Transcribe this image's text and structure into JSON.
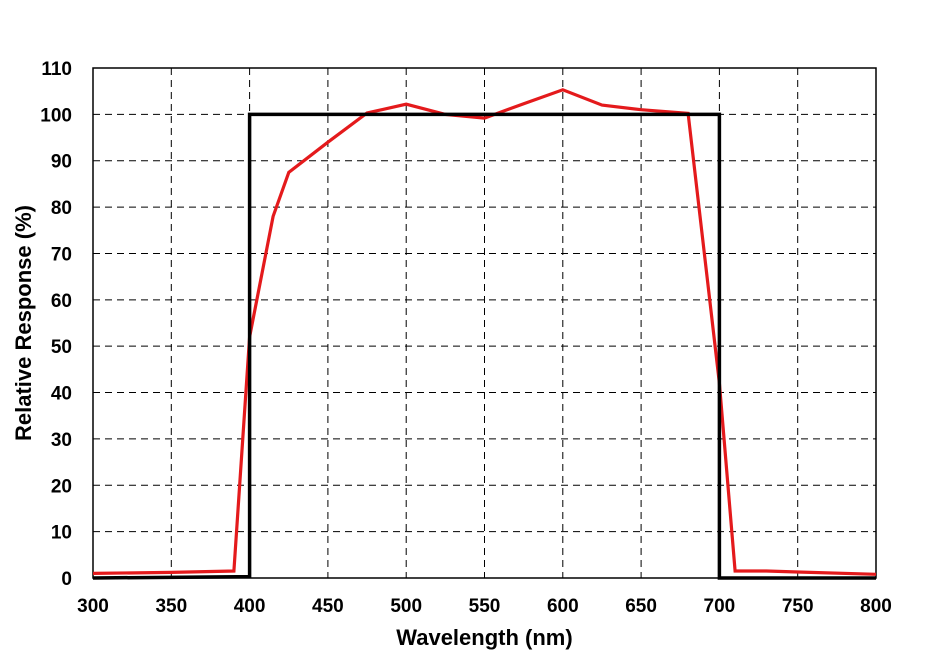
{
  "chart_data": {
    "type": "line",
    "title": "",
    "xlabel": "Wavelength (nm)",
    "ylabel": "Relative Response (%)",
    "xlim": [
      300,
      800
    ],
    "ylim": [
      0,
      110
    ],
    "xticks": [
      300,
      350,
      400,
      450,
      500,
      550,
      600,
      650,
      700,
      750,
      800
    ],
    "yticks": [
      0,
      10,
      20,
      30,
      40,
      50,
      60,
      70,
      80,
      90,
      100,
      110
    ],
    "grid": true,
    "legend": "none",
    "series": [
      {
        "color": "#e41a1c",
        "x": [
          300,
          350,
          390,
          400,
          415,
          425,
          450,
          475,
          500,
          525,
          550,
          575,
          600,
          625,
          650,
          680,
          700,
          710,
          730,
          750,
          800
        ],
        "y": [
          1,
          1.2,
          1.5,
          52,
          78,
          87.5,
          94,
          100.3,
          102.2,
          100,
          99.2,
          102.3,
          105.3,
          102,
          101,
          100.2,
          42,
          1.5,
          1.5,
          1.3,
          0.8
        ]
      },
      {
        "color": "#000000",
        "x": [
          300,
          400,
          400,
          700,
          700,
          800
        ],
        "y": [
          0,
          0.3,
          100,
          100,
          0,
          0
        ]
      }
    ]
  }
}
